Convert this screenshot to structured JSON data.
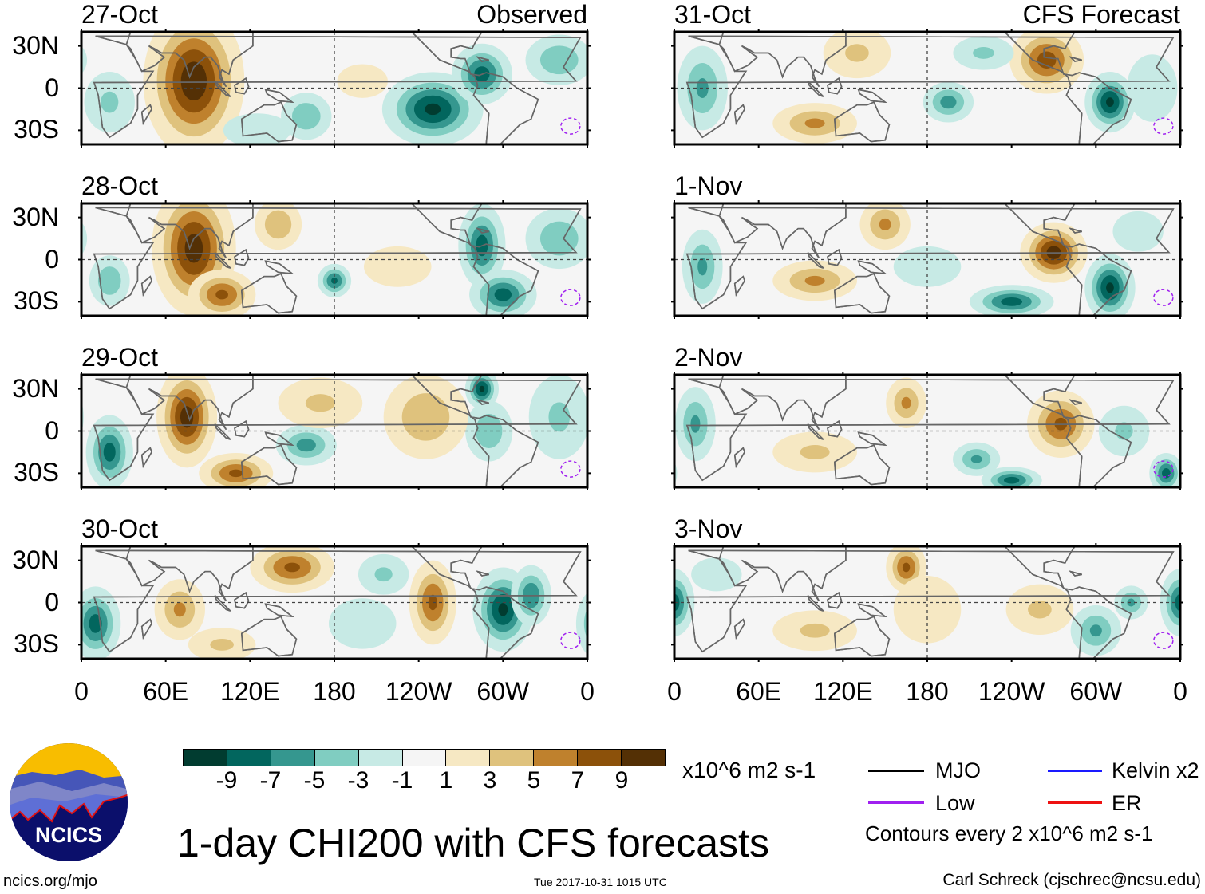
{
  "title": "1-day CHI200 with CFS forecasts",
  "timestamp": "Tue 2017-10-31 1015 UTC",
  "website": "ncics.org/mjo",
  "author": "Carl Schreck (cjschrec@ncsu.edu)",
  "logo": {
    "text": "NCICS"
  },
  "units": "x10^6 m2 s-1",
  "contour_note": "Contours every 2 x10^6 m2 s-1",
  "legend": [
    {
      "label": "MJO",
      "color": "#000000"
    },
    {
      "label": "Kelvin x2",
      "color": "#1a1aff"
    },
    {
      "label": "Low",
      "color": "#a020f0"
    },
    {
      "label": "ER",
      "color": "#ee1111"
    }
  ],
  "colorbar": {
    "colors": [
      "#013c30",
      "#02665e",
      "#35978f",
      "#80cdc1",
      "#c7eae5",
      "#f5f5f5",
      "#f6e8c3",
      "#dfc27d",
      "#bf812d",
      "#8c510a",
      "#543005"
    ],
    "labels": [
      "-9",
      "-7",
      "-5",
      "-3",
      "-1",
      "1",
      "3",
      "5",
      "7",
      "9"
    ]
  },
  "lat_labels": [
    "30N",
    "0",
    "30S"
  ],
  "lon_labels": [
    "0",
    "60E",
    "120E",
    "180",
    "120W",
    "60W",
    "0"
  ],
  "columns": [
    {
      "tag": "Observed"
    },
    {
      "tag": "CFS Forecast"
    }
  ],
  "panels": [
    {
      "date": "27-Oct",
      "anomalies": [
        [
          80,
          5,
          10.5,
          30,
          45
        ],
        [
          250,
          -15,
          -9.5,
          30,
          22
        ],
        [
          285,
          10,
          -8,
          18,
          18
        ],
        [
          340,
          20,
          -5,
          20,
          15
        ],
        [
          160,
          -20,
          -5,
          15,
          14
        ],
        [
          200,
          5,
          2.5,
          15,
          10
        ],
        [
          20,
          -10,
          -3.5,
          15,
          18
        ],
        [
          125,
          -30,
          -2,
          20,
          10
        ]
      ]
    },
    {
      "date": "28-Oct",
      "anomalies": [
        [
          80,
          8,
          10,
          25,
          40
        ],
        [
          100,
          -25,
          7.5,
          20,
          15
        ],
        [
          285,
          10,
          -8,
          14,
          25
        ],
        [
          300,
          -25,
          -8,
          20,
          15
        ],
        [
          180,
          -15,
          -7.5,
          10,
          10
        ],
        [
          340,
          15,
          -5,
          20,
          18
        ],
        [
          20,
          -15,
          -5,
          12,
          15
        ],
        [
          140,
          25,
          5,
          14,
          15
        ],
        [
          225,
          -5,
          2,
          20,
          12
        ]
      ]
    },
    {
      "date": "29-Oct",
      "anomalies": [
        [
          75,
          10,
          10,
          18,
          30
        ],
        [
          110,
          -30,
          7.5,
          22,
          12
        ],
        [
          285,
          30,
          -9.5,
          10,
          12
        ],
        [
          290,
          0,
          -5,
          14,
          18
        ],
        [
          20,
          -15,
          -8,
          14,
          22
        ],
        [
          160,
          -10,
          -6,
          18,
          12
        ],
        [
          245,
          10,
          5,
          25,
          25
        ],
        [
          170,
          20,
          3.5,
          25,
          15
        ],
        [
          340,
          10,
          -3.5,
          18,
          25
        ]
      ]
    },
    {
      "date": "30-Oct",
      "anomalies": [
        [
          150,
          25,
          7.5,
          25,
          15
        ],
        [
          10,
          -15,
          -8,
          15,
          22
        ],
        [
          250,
          0,
          7.5,
          14,
          25
        ],
        [
          300,
          -5,
          -9.5,
          18,
          25
        ],
        [
          320,
          5,
          -7,
          12,
          18
        ],
        [
          70,
          -5,
          5.5,
          15,
          18
        ],
        [
          215,
          20,
          -3.5,
          15,
          12
        ],
        [
          100,
          -30,
          3.5,
          20,
          10
        ],
        [
          200,
          -15,
          -2.5,
          20,
          15
        ]
      ]
    },
    {
      "date": "31-Oct",
      "anomalies": [
        [
          265,
          20,
          8,
          22,
          20
        ],
        [
          310,
          -10,
          -9.5,
          15,
          18
        ],
        [
          20,
          0,
          -5.5,
          15,
          25
        ],
        [
          100,
          -25,
          5.5,
          25,
          12
        ],
        [
          195,
          -10,
          -6,
          15,
          12
        ],
        [
          130,
          25,
          3.5,
          20,
          15
        ],
        [
          220,
          25,
          -3.5,
          18,
          10
        ],
        [
          340,
          0,
          -3,
          15,
          20
        ]
      ]
    },
    {
      "date": "1-Nov",
      "anomalies": [
        [
          270,
          5,
          10,
          20,
          18
        ],
        [
          310,
          -20,
          -9.5,
          15,
          20
        ],
        [
          240,
          -30,
          -8,
          25,
          10
        ],
        [
          100,
          -15,
          5.5,
          25,
          12
        ],
        [
          150,
          25,
          5.5,
          15,
          15
        ],
        [
          20,
          -5,
          -5.5,
          12,
          22
        ],
        [
          180,
          -5,
          -3,
          20,
          12
        ],
        [
          330,
          20,
          -3,
          15,
          12
        ]
      ]
    },
    {
      "date": "2-Nov",
      "anomalies": [
        [
          275,
          5,
          7.5,
          20,
          20
        ],
        [
          165,
          20,
          5.5,
          12,
          15
        ],
        [
          240,
          -35,
          -8,
          18,
          8
        ],
        [
          350,
          -30,
          -8,
          10,
          12
        ],
        [
          215,
          -20,
          -5.5,
          14,
          10
        ],
        [
          15,
          5,
          -5.5,
          12,
          22
        ],
        [
          100,
          -15,
          3.5,
          25,
          12
        ],
        [
          320,
          0,
          -3.5,
          15,
          15
        ]
      ]
    },
    {
      "date": "3-Nov",
      "anomalies": [
        [
          165,
          25,
          7.5,
          12,
          15
        ],
        [
          0,
          0,
          -8,
          12,
          20
        ],
        [
          300,
          -20,
          -5.5,
          15,
          15
        ],
        [
          325,
          0,
          -5.5,
          10,
          10
        ],
        [
          100,
          -20,
          3.5,
          25,
          12
        ],
        [
          260,
          -5,
          3.5,
          20,
          15
        ],
        [
          180,
          -5,
          2.5,
          20,
          20
        ],
        [
          30,
          20,
          -3,
          15,
          10
        ]
      ]
    }
  ]
}
